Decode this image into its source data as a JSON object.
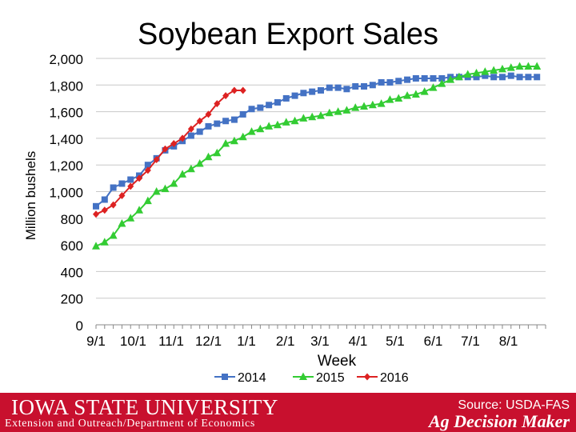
{
  "slide": {
    "title": "Soybean Export Sales",
    "university": "IOWA STATE UNIVERSITY",
    "department": "Extension and Outreach/Department of Economics",
    "source": "Source: USDA-FAS",
    "brand": "Ag Decision Maker",
    "footer_color": "#c8102e"
  },
  "chart_data": {
    "type": "line",
    "title": "Soybean Export Sales",
    "xlabel": "Week",
    "ylabel": "Million bushels",
    "ylim": [
      0,
      2000
    ],
    "yticks": [
      0,
      200,
      400,
      600,
      800,
      1000,
      1200,
      1400,
      1600,
      1800,
      2000
    ],
    "ytick_labels": [
      "0",
      "200",
      "400",
      "600",
      "800",
      "1,000",
      "1,200",
      "1,400",
      "1,600",
      "1,800",
      "2,000"
    ],
    "xticks": [
      {
        "label": "9/1",
        "week": 0
      },
      {
        "label": "10/1",
        "week": 4.3
      },
      {
        "label": "11/1",
        "week": 8.7
      },
      {
        "label": "12/1",
        "week": 13
      },
      {
        "label": "1/1",
        "week": 17.4
      },
      {
        "label": "2/1",
        "week": 21.9
      },
      {
        "label": "3/1",
        "week": 25.9
      },
      {
        "label": "4/1",
        "week": 30.3
      },
      {
        "label": "5/1",
        "week": 34.6
      },
      {
        "label": "6/1",
        "week": 39
      },
      {
        "label": "7/1",
        "week": 43.3
      },
      {
        "label": "8/1",
        "week": 47.7
      }
    ],
    "xlim": [
      0,
      52
    ],
    "grid": true,
    "legend_position": "bottom",
    "series": [
      {
        "name": "2014",
        "color": "#4472c4",
        "marker": "square",
        "x": [
          0,
          1,
          2,
          3,
          4,
          5,
          6,
          7,
          8,
          9,
          10,
          11,
          12,
          13,
          14,
          15,
          16,
          17,
          18,
          19,
          20,
          21,
          22,
          23,
          24,
          25,
          26,
          27,
          28,
          29,
          30,
          31,
          32,
          33,
          34,
          35,
          36,
          37,
          38,
          39,
          40,
          41,
          42,
          43,
          44,
          45,
          46,
          47,
          48,
          49,
          50,
          51
        ],
        "values": [
          890,
          940,
          1030,
          1060,
          1090,
          1120,
          1200,
          1250,
          1310,
          1340,
          1380,
          1420,
          1450,
          1490,
          1510,
          1530,
          1540,
          1580,
          1620,
          1630,
          1650,
          1670,
          1700,
          1720,
          1740,
          1750,
          1760,
          1780,
          1780,
          1770,
          1790,
          1790,
          1800,
          1820,
          1820,
          1830,
          1840,
          1850,
          1850,
          1850,
          1850,
          1860,
          1860,
          1860,
          1860,
          1870,
          1860,
          1860,
          1870,
          1860,
          1860,
          1860
        ]
      },
      {
        "name": "2015",
        "color": "#33cc33",
        "marker": "triangle",
        "x": [
          0,
          1,
          2,
          3,
          4,
          5,
          6,
          7,
          8,
          9,
          10,
          11,
          12,
          13,
          14,
          15,
          16,
          17,
          18,
          19,
          20,
          21,
          22,
          23,
          24,
          25,
          26,
          27,
          28,
          29,
          30,
          31,
          32,
          33,
          34,
          35,
          36,
          37,
          38,
          39,
          40,
          41,
          42,
          43,
          44,
          45,
          46,
          47,
          48,
          49,
          50,
          51
        ],
        "values": [
          590,
          620,
          670,
          760,
          800,
          860,
          930,
          1000,
          1020,
          1060,
          1130,
          1170,
          1210,
          1260,
          1290,
          1360,
          1380,
          1410,
          1450,
          1470,
          1490,
          1500,
          1520,
          1530,
          1550,
          1560,
          1570,
          1590,
          1600,
          1610,
          1630,
          1640,
          1650,
          1660,
          1690,
          1700,
          1720,
          1730,
          1750,
          1780,
          1810,
          1840,
          1860,
          1880,
          1890,
          1900,
          1910,
          1920,
          1930,
          1940,
          1940,
          1940
        ]
      },
      {
        "name": "2016",
        "color": "#dd2222",
        "marker": "diamond",
        "x": [
          0,
          1,
          2,
          3,
          4,
          5,
          6,
          7,
          8,
          9,
          10,
          11,
          12,
          13,
          14,
          15,
          16,
          17
        ],
        "values": [
          830,
          860,
          900,
          970,
          1040,
          1100,
          1160,
          1240,
          1320,
          1360,
          1400,
          1470,
          1530,
          1580,
          1660,
          1720,
          1760,
          1760
        ]
      }
    ]
  }
}
